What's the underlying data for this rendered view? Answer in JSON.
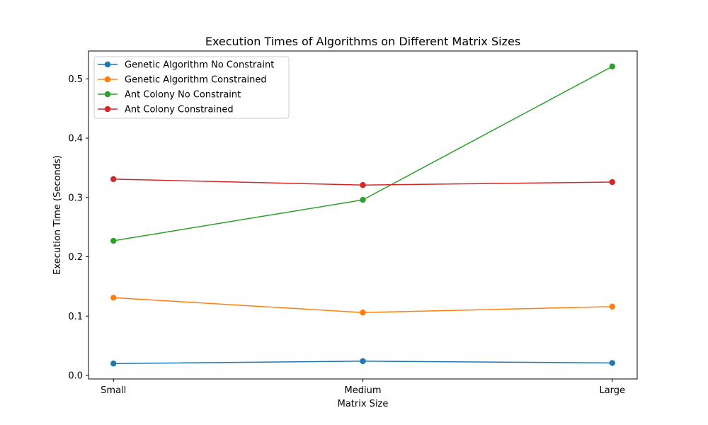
{
  "chart_data": {
    "type": "line",
    "title": "Execution Times of Algorithms on Different Matrix Sizes",
    "xlabel": "Matrix Size",
    "ylabel": "Execution Time (Seconds)",
    "categories": [
      "Small",
      "Medium",
      "Large"
    ],
    "ylim": [
      -0.006,
      0.547
    ],
    "yticks": [
      0.0,
      0.1,
      0.2,
      0.3,
      0.4,
      0.5
    ],
    "ytick_labels": [
      "0.0",
      "0.1",
      "0.2",
      "0.3",
      "0.4",
      "0.5"
    ],
    "grid": false,
    "legend_position": "top-left",
    "marker": "circle",
    "series": [
      {
        "name": "Genetic Algorithm No Constraint",
        "color": "#1f77b4",
        "values": [
          0.02,
          0.024,
          0.021
        ]
      },
      {
        "name": "Genetic Algorithm Constrained",
        "color": "#ff7f0e",
        "values": [
          0.131,
          0.106,
          0.116
        ]
      },
      {
        "name": "Ant Colony No Constraint",
        "color": "#2ca02c",
        "values": [
          0.227,
          0.296,
          0.521
        ]
      },
      {
        "name": "Ant Colony Constrained",
        "color": "#d62728",
        "values": [
          0.331,
          0.321,
          0.326
        ]
      }
    ]
  }
}
